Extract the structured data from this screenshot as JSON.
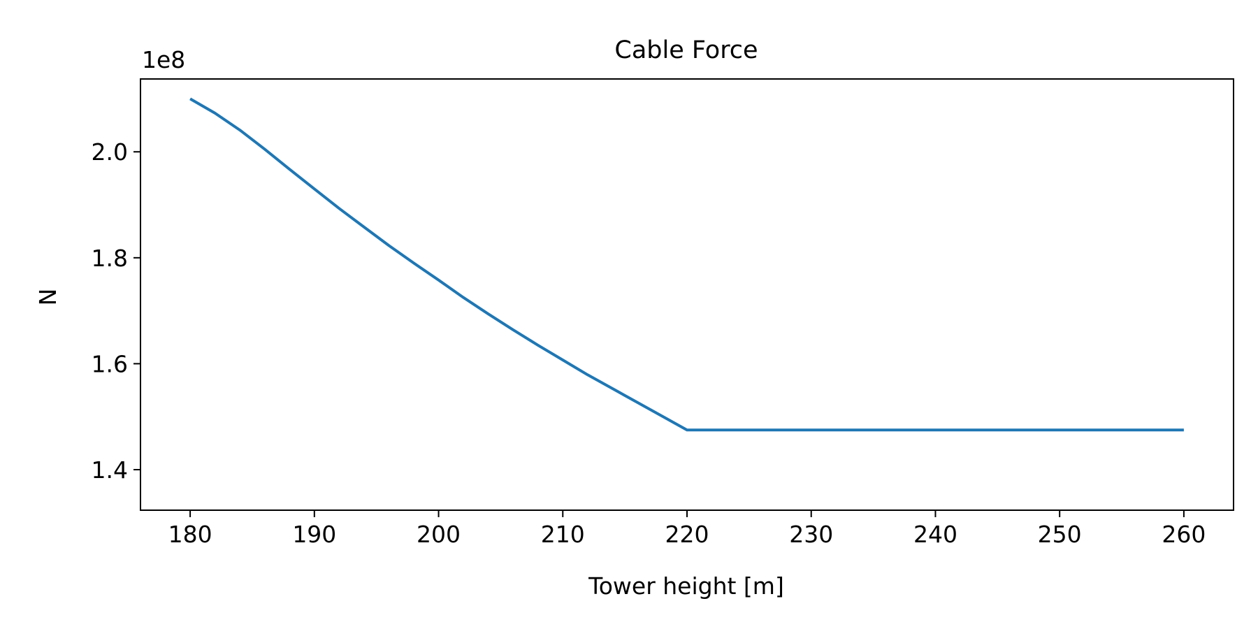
{
  "chart_data": {
    "type": "line",
    "title": "Cable Force",
    "xlabel": "Tower height [m]",
    "ylabel": "N",
    "y_offset_label": "1e8",
    "xlim": [
      176,
      264
    ],
    "ylim": [
      1.3235,
      2.1375
    ],
    "x_ticks": [
      180,
      190,
      200,
      210,
      220,
      230,
      240,
      250,
      260
    ],
    "y_ticks": [
      1.4,
      1.6,
      1.8,
      2.0
    ],
    "x_tick_labels": [
      "180",
      "190",
      "200",
      "210",
      "220",
      "230",
      "240",
      "250",
      "260"
    ],
    "y_tick_labels": [
      "1.4",
      "1.6",
      "1.8",
      "2.0"
    ],
    "grid": false,
    "series": [
      {
        "color": "#1f77b4",
        "x": [
          180,
          182,
          184,
          186,
          188,
          190,
          192,
          194,
          196,
          198,
          200,
          202,
          204,
          206,
          208,
          210,
          212,
          214,
          216,
          218,
          220,
          230,
          240,
          250,
          260
        ],
        "y": [
          2.1,
          2.073,
          2.041,
          2.005,
          1.967,
          1.93,
          1.893,
          1.858,
          1.823,
          1.79,
          1.758,
          1.725,
          1.694,
          1.664,
          1.635,
          1.607,
          1.579,
          1.553,
          1.527,
          1.501,
          1.475,
          1.475,
          1.475,
          1.475,
          1.475
        ]
      }
    ]
  }
}
